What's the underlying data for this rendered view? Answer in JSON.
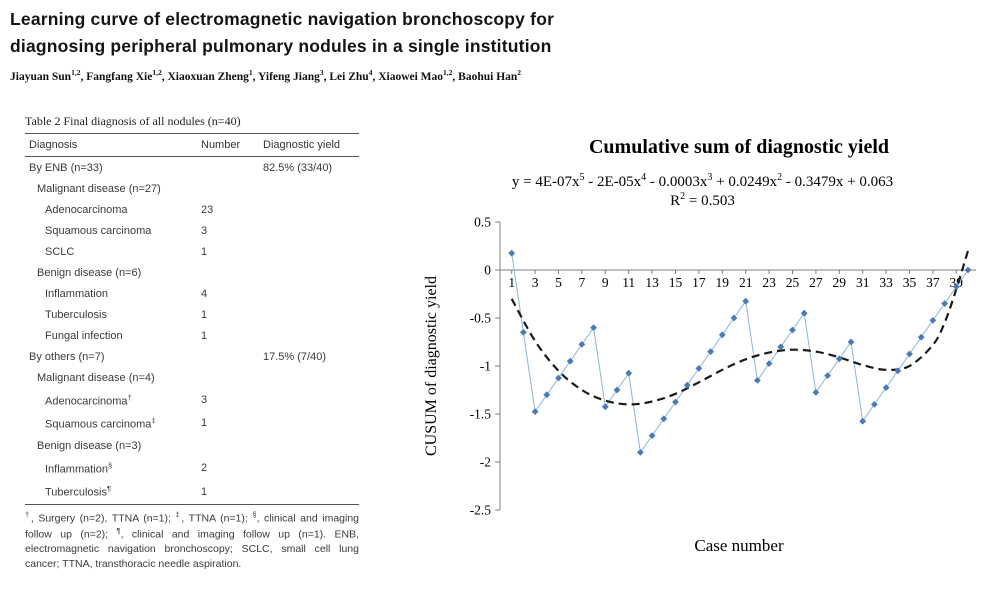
{
  "header": {
    "title_line1": "Learning curve of electromagnetic navigation bronchoscopy for",
    "title_line2": "diagnosing peripheral pulmonary nodules in a single institution",
    "authors_parts": [
      {
        "text": "Jiayuan Sun"
      },
      {
        "sup": "1,2"
      },
      {
        "text": ", Fangfang Xie"
      },
      {
        "sup": "1,2"
      },
      {
        "text": ", Xiaoxuan Zheng"
      },
      {
        "sup": "1"
      },
      {
        "text": ", Yifeng Jiang"
      },
      {
        "sup": "3"
      },
      {
        "text": ", Lei Zhu"
      },
      {
        "sup": "4"
      },
      {
        "text": ", Xiaowei Mao"
      },
      {
        "sup": "1,2"
      },
      {
        "text": ", Baohui Han"
      },
      {
        "sup": "2"
      }
    ]
  },
  "table": {
    "caption": "Table 2 Final diagnosis of all nodules (n=40)",
    "columns": [
      "Diagnosis",
      "Number",
      "Diagnostic yield"
    ],
    "rows": [
      {
        "label": "By ENB (n=33)",
        "indent": 0,
        "number": "",
        "yield": "82.5% (33/40)"
      },
      {
        "label": "Malignant disease (n=27)",
        "indent": 1,
        "number": "",
        "yield": ""
      },
      {
        "label": "Adenocarcinoma",
        "indent": 2,
        "number": "23",
        "yield": ""
      },
      {
        "label": "Squamous carcinoma",
        "indent": 2,
        "number": "3",
        "yield": ""
      },
      {
        "label": "SCLC",
        "indent": 2,
        "number": "1",
        "yield": ""
      },
      {
        "label": "Benign disease (n=6)",
        "indent": 1,
        "number": "",
        "yield": ""
      },
      {
        "label": "Inflammation",
        "indent": 2,
        "number": "4",
        "yield": ""
      },
      {
        "label": "Tuberculosis",
        "indent": 2,
        "number": "1",
        "yield": ""
      },
      {
        "label": "Fungal infection",
        "indent": 2,
        "number": "1",
        "yield": ""
      },
      {
        "label": "By others (n=7)",
        "indent": 0,
        "number": "",
        "yield": "17.5% (7/40)"
      },
      {
        "label": "Malignant disease (n=4)",
        "indent": 1,
        "number": "",
        "yield": ""
      },
      {
        "label": "Adenocarcinoma",
        "sup": "†",
        "indent": 2,
        "number": "3",
        "yield": ""
      },
      {
        "label": "Squamous carcinoma",
        "sup": "‡",
        "indent": 2,
        "number": "1",
        "yield": ""
      },
      {
        "label": "Benign disease (n=3)",
        "indent": 1,
        "number": "",
        "yield": ""
      },
      {
        "label": "Inflammation",
        "sup": "§",
        "indent": 2,
        "number": "2",
        "yield": ""
      },
      {
        "label": "Tuberculosis",
        "sup": "¶",
        "indent": 2,
        "number": "1",
        "yield": ""
      }
    ],
    "footnote_parts": [
      {
        "sup": "†"
      },
      {
        "text": ", Surgery (n=2), TTNA (n=1); "
      },
      {
        "sup": "‡"
      },
      {
        "text": ", TTNA (n=1); "
      },
      {
        "sup": "§"
      },
      {
        "text": ", clinical and imaging follow up (n=2); "
      },
      {
        "sup": "¶"
      },
      {
        "text": ", clinical and imaging follow up (n=1). ENB, electromagnetic navigation bronchoscopy; SCLC, small cell lung cancer; TTNA, transthoracic needle aspiration."
      }
    ]
  },
  "chart_data": {
    "type": "line",
    "title": "Cumulative sum of diagnostic yield",
    "equation_parts": [
      {
        "text": "y = 4E-07x"
      },
      {
        "sup": "5"
      },
      {
        "text": " - 2E-05x"
      },
      {
        "sup": "4"
      },
      {
        "text": " - 0.0003x"
      },
      {
        "sup": "3"
      },
      {
        "text": " + 0.0249x"
      },
      {
        "sup": "2"
      },
      {
        "text": " - 0.3479x + 0.063"
      }
    ],
    "r_squared_parts": [
      {
        "text": "R"
      },
      {
        "sup": "2"
      },
      {
        "text": " = 0.503"
      }
    ],
    "xlabel": "Case number",
    "ylabel": "CUSUM of diagnostic yield",
    "ylim": [
      -2.5,
      0.5
    ],
    "grid": false,
    "legend": "none",
    "yticks": [
      0.5,
      0,
      -0.5,
      -1,
      -1.5,
      -2,
      -2.5
    ],
    "xticks": [
      1,
      3,
      5,
      7,
      9,
      11,
      13,
      15,
      17,
      19,
      21,
      23,
      25,
      27,
      29,
      31,
      33,
      35,
      37,
      39
    ],
    "x": [
      1,
      2,
      3,
      4,
      5,
      6,
      7,
      8,
      9,
      10,
      11,
      12,
      13,
      14,
      15,
      16,
      17,
      18,
      19,
      20,
      21,
      22,
      23,
      24,
      25,
      26,
      27,
      28,
      29,
      30,
      31,
      32,
      33,
      34,
      35,
      36,
      37,
      38,
      39,
      40
    ],
    "series": {
      "name": "CUSUM of diagnostic yield",
      "marker": "diamond",
      "marker_color": "#4a7ab5",
      "line_color": "#8eb4d9",
      "values": [
        0.175,
        -0.65,
        -1.475,
        -1.3,
        -1.125,
        -0.95,
        -0.775,
        -0.6,
        -1.425,
        -1.25,
        -1.075,
        -1.9,
        -1.725,
        -1.55,
        -1.375,
        -1.2,
        -1.025,
        -0.85,
        -0.675,
        -0.5,
        -0.325,
        -1.15,
        -0.975,
        -0.8,
        -0.625,
        -0.45,
        -1.275,
        -1.1,
        -0.925,
        -0.75,
        -1.575,
        -1.4,
        -1.225,
        -1.05,
        -0.875,
        -0.7,
        -0.525,
        -0.35,
        -0.175,
        0
      ]
    },
    "trend": {
      "name": "5th-order polynomial fit",
      "style": "dashed",
      "color": "#1a1a1a",
      "x": [
        1,
        3,
        5,
        7,
        9,
        11,
        13,
        15,
        17,
        19,
        21,
        23,
        25,
        27,
        29,
        31,
        33,
        35,
        37,
        38,
        39,
        40
      ],
      "y": [
        -0.3,
        -0.74,
        -1.05,
        -1.25,
        -1.36,
        -1.4,
        -1.37,
        -1.29,
        -1.17,
        -1.04,
        -0.93,
        -0.86,
        -0.83,
        -0.85,
        -0.91,
        -0.99,
        -1.04,
        -1.0,
        -0.78,
        -0.55,
        -0.2,
        0.2
      ]
    }
  }
}
